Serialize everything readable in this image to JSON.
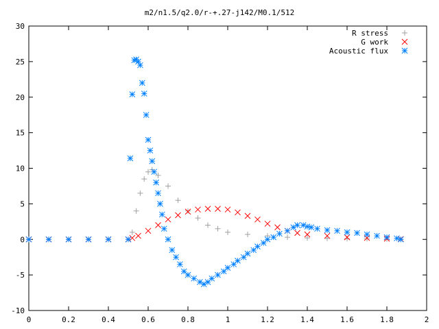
{
  "chart_data": {
    "type": "scatter",
    "title": "m2/n1.5/q2.0/r-+.27-j142/M0.1/512",
    "xlabel": "",
    "ylabel": "",
    "xlim": [
      0,
      2
    ],
    "ylim": [
      -10,
      30
    ],
    "xticks": [
      0,
      0.2,
      0.4,
      0.6,
      0.8,
      1,
      1.2,
      1.4,
      1.6,
      1.8,
      2
    ],
    "yticks": [
      -10,
      -5,
      0,
      5,
      10,
      15,
      20,
      25,
      30
    ],
    "x_tick_labels": [
      "0",
      "0.2",
      "0.4",
      "0.6",
      "0.8",
      "1",
      "1.2",
      "1.4",
      "1.6",
      "1.8",
      "2"
    ],
    "y_tick_labels": [
      "-10",
      "-5",
      "0",
      "5",
      "10",
      "15",
      "20",
      "25",
      "30"
    ],
    "grid": false,
    "legend_position": "top-right",
    "series": [
      {
        "name": "R stress",
        "color": "#a0a0a0",
        "marker": "plus",
        "points": [
          [
            0.0,
            0
          ],
          [
            0.1,
            0
          ],
          [
            0.2,
            0
          ],
          [
            0.3,
            0
          ],
          [
            0.4,
            0
          ],
          [
            0.5,
            0
          ],
          [
            0.52,
            1.0
          ],
          [
            0.54,
            4.0
          ],
          [
            0.56,
            6.5
          ],
          [
            0.58,
            8.5
          ],
          [
            0.6,
            9.5
          ],
          [
            0.62,
            9.8
          ],
          [
            0.65,
            9.0
          ],
          [
            0.7,
            7.5
          ],
          [
            0.75,
            5.5
          ],
          [
            0.8,
            4.0
          ],
          [
            0.85,
            3.0
          ],
          [
            0.9,
            2.0
          ],
          [
            0.95,
            1.5
          ],
          [
            1.0,
            1.0
          ],
          [
            1.1,
            0.7
          ],
          [
            1.2,
            0.5
          ],
          [
            1.3,
            0.3
          ],
          [
            1.4,
            0.2
          ],
          [
            1.5,
            0.15
          ],
          [
            1.6,
            0.1
          ],
          [
            1.7,
            0.1
          ],
          [
            1.8,
            0.05
          ],
          [
            1.87,
            0.0
          ]
        ]
      },
      {
        "name": "G work",
        "color": "#ff0000",
        "marker": "cross",
        "points": [
          [
            0.0,
            0
          ],
          [
            0.1,
            0
          ],
          [
            0.2,
            0
          ],
          [
            0.3,
            0
          ],
          [
            0.4,
            0
          ],
          [
            0.5,
            0
          ],
          [
            0.52,
            0.2
          ],
          [
            0.55,
            0.5
          ],
          [
            0.6,
            1.2
          ],
          [
            0.65,
            2.0
          ],
          [
            0.7,
            2.8
          ],
          [
            0.75,
            3.4
          ],
          [
            0.8,
            3.9
          ],
          [
            0.85,
            4.2
          ],
          [
            0.9,
            4.3
          ],
          [
            0.95,
            4.3
          ],
          [
            1.0,
            4.2
          ],
          [
            1.05,
            3.8
          ],
          [
            1.1,
            3.3
          ],
          [
            1.15,
            2.8
          ],
          [
            1.2,
            2.2
          ],
          [
            1.25,
            1.7
          ],
          [
            1.3,
            1.2
          ],
          [
            1.35,
            0.9
          ],
          [
            1.4,
            0.7
          ],
          [
            1.5,
            0.5
          ],
          [
            1.6,
            0.3
          ],
          [
            1.7,
            0.2
          ],
          [
            1.8,
            0.1
          ],
          [
            1.87,
            0.05
          ]
        ]
      },
      {
        "name": "Acoustic flux",
        "color": "#0080ff",
        "marker": "star",
        "points": [
          [
            0.0,
            0
          ],
          [
            0.1,
            0
          ],
          [
            0.2,
            0
          ],
          [
            0.3,
            0
          ],
          [
            0.4,
            0
          ],
          [
            0.5,
            0
          ],
          [
            0.51,
            11.4
          ],
          [
            0.52,
            20.4
          ],
          [
            0.53,
            25.2
          ],
          [
            0.54,
            25.3
          ],
          [
            0.55,
            25.0
          ],
          [
            0.56,
            24.5
          ],
          [
            0.57,
            22.0
          ],
          [
            0.58,
            20.5
          ],
          [
            0.59,
            17.5
          ],
          [
            0.6,
            14.0
          ],
          [
            0.61,
            12.5
          ],
          [
            0.62,
            11.0
          ],
          [
            0.63,
            9.5
          ],
          [
            0.64,
            8.0
          ],
          [
            0.65,
            6.5
          ],
          [
            0.66,
            5.0
          ],
          [
            0.67,
            3.5
          ],
          [
            0.68,
            1.5
          ],
          [
            0.7,
            0.0
          ],
          [
            0.72,
            -1.5
          ],
          [
            0.74,
            -2.5
          ],
          [
            0.76,
            -3.5
          ],
          [
            0.78,
            -4.5
          ],
          [
            0.8,
            -5.0
          ],
          [
            0.83,
            -5.5
          ],
          [
            0.86,
            -6.0
          ],
          [
            0.88,
            -6.3
          ],
          [
            0.9,
            -6.0
          ],
          [
            0.92,
            -5.5
          ],
          [
            0.95,
            -5.0
          ],
          [
            0.98,
            -4.5
          ],
          [
            1.0,
            -4.0
          ],
          [
            1.03,
            -3.5
          ],
          [
            1.05,
            -3.0
          ],
          [
            1.08,
            -2.5
          ],
          [
            1.1,
            -2.0
          ],
          [
            1.13,
            -1.5
          ],
          [
            1.15,
            -1.0
          ],
          [
            1.18,
            -0.5
          ],
          [
            1.2,
            0.0
          ],
          [
            1.23,
            0.3
          ],
          [
            1.26,
            0.8
          ],
          [
            1.3,
            1.2
          ],
          [
            1.33,
            1.7
          ],
          [
            1.35,
            2.0
          ],
          [
            1.38,
            2.0
          ],
          [
            1.4,
            1.8
          ],
          [
            1.42,
            1.7
          ],
          [
            1.45,
            1.5
          ],
          [
            1.5,
            1.3
          ],
          [
            1.55,
            1.2
          ],
          [
            1.6,
            1.0
          ],
          [
            1.65,
            0.9
          ],
          [
            1.7,
            0.7
          ],
          [
            1.75,
            0.5
          ],
          [
            1.8,
            0.3
          ],
          [
            1.85,
            0.15
          ],
          [
            1.87,
            0.0
          ]
        ]
      }
    ]
  }
}
